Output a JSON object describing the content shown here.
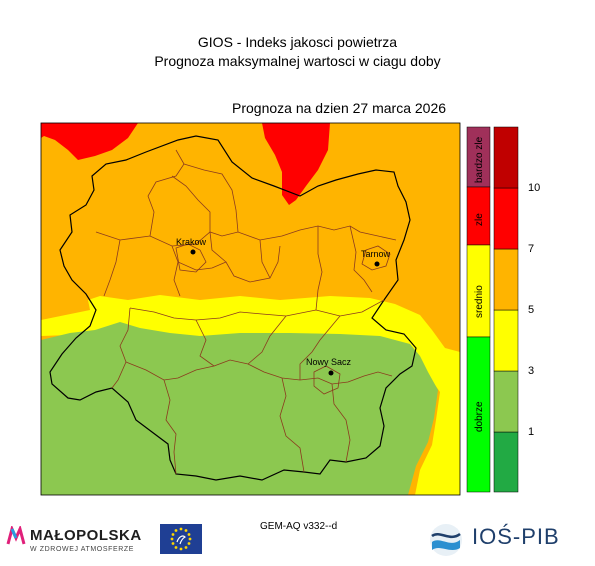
{
  "header": {
    "title_line1": "GIOS - Indeks jakosci powietrza",
    "title_line2": "Prognoza maksymalnej wartosci w ciagu doby",
    "forecast_date": "Prognoza na dzien  27 marca 2026"
  },
  "map": {
    "cities": [
      {
        "name": "Krakow"
      },
      {
        "name": "Tarnow"
      },
      {
        "name": "Nowy Sacz"
      }
    ],
    "zone_colors": {
      "bardzo_zle": "#a0305a",
      "zle": "#ff0000",
      "dostateczne": "#ffb400",
      "srednio": "#ffff00",
      "dobre": "#8cc850",
      "bardzo_dobre": "#22aa44"
    }
  },
  "legend": {
    "categories": [
      {
        "label": "bardzo zle",
        "color": "#a0305a"
      },
      {
        "label": "zle",
        "color": "#ff0000"
      },
      {
        "label": "srednio",
        "color": "#ffff00"
      },
      {
        "label": "dobrze",
        "color": "#00ff00"
      }
    ],
    "scale_colors": [
      "#22aa44",
      "#8cc850",
      "#ffff00",
      "#ffb400",
      "#ff0000",
      "#c00000"
    ],
    "scale_labels": [
      "1",
      "3",
      "5",
      "7",
      "10"
    ]
  },
  "footer": {
    "model": "GEM-AQ v332--d",
    "logo_malopolska": "MAŁOPOLSKA",
    "logo_malopolska_sub": "W ZDROWEJ ATMOSFERZE",
    "logo_ios": "IOŚ-PIB"
  }
}
